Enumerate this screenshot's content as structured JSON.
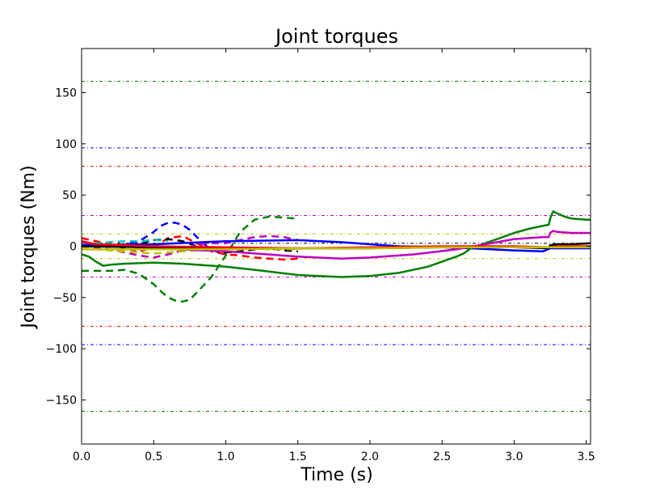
{
  "chart_data": {
    "type": "line",
    "title": "Joint torques",
    "xlabel": "Time (s)",
    "ylabel": "Joint torques (Nm)",
    "xlim": [
      0,
      3.53
    ],
    "ylim": [
      -193,
      193
    ],
    "xticks": [
      0.0,
      0.5,
      1.0,
      1.5,
      2.0,
      2.5,
      3.0,
      3.5
    ],
    "xtick_labels": [
      "0.0",
      "0.5",
      "1.0",
      "1.5",
      "2.0",
      "2.5",
      "3.0",
      "3.5"
    ],
    "yticks": [
      -150,
      -100,
      -50,
      0,
      50,
      100,
      150
    ],
    "ytick_labels": [
      "−150",
      "−100",
      "−50",
      "0",
      "50",
      "100",
      "150"
    ],
    "grid": false,
    "limits": [
      {
        "value": 161,
        "color": "#008000"
      },
      {
        "value": -161,
        "color": "#008000"
      },
      {
        "value": 96,
        "color": "#0000ff"
      },
      {
        "value": -96,
        "color": "#0000ff"
      },
      {
        "value": 78,
        "color": "#ff0000"
      },
      {
        "value": -78,
        "color": "#ff0000"
      },
      {
        "value": 30,
        "color": "#bf00bf"
      },
      {
        "value": -30,
        "color": "#bf00bf"
      },
      {
        "value": 12,
        "color": "#bfbf00"
      },
      {
        "value": -12,
        "color": "#bfbf00"
      },
      {
        "value": 3,
        "color": "#000000"
      }
    ],
    "series": [
      {
        "color": "#0000ff",
        "style": "dashed",
        "x": [
          0,
          0.1,
          0.2,
          0.3,
          0.4,
          0.5,
          0.55,
          0.6,
          0.65,
          0.7,
          0.75,
          0.8,
          0.85,
          0.9,
          0.95,
          1.0
        ],
        "y": [
          3,
          2,
          1,
          2,
          5,
          14,
          20,
          23,
          23,
          21,
          16,
          9,
          2,
          -3,
          -6,
          -7
        ]
      },
      {
        "color": "#ff0000",
        "style": "dashed",
        "x": [
          0,
          0.1,
          0.2,
          0.3,
          0.4,
          0.5,
          0.6,
          0.7,
          0.8,
          0.9,
          1.0,
          1.1,
          1.2,
          1.3,
          1.4,
          1.5
        ],
        "y": [
          8,
          5,
          2,
          -2,
          -5,
          -1,
          8,
          10,
          3,
          -5,
          -8,
          -9,
          -11,
          -12,
          -13,
          -12
        ]
      },
      {
        "color": "#008000",
        "style": "dashed",
        "x": [
          0,
          0.1,
          0.2,
          0.3,
          0.4,
          0.5,
          0.55,
          0.6,
          0.65,
          0.7,
          0.75,
          0.8,
          0.9,
          1.0,
          1.1,
          1.2,
          1.3,
          1.4,
          1.5
        ],
        "y": [
          -24,
          -24,
          -24,
          -23,
          -27,
          -37,
          -44,
          -50,
          -53,
          -54,
          -52,
          -45,
          -30,
          -9,
          14,
          26,
          29,
          28,
          27
        ]
      },
      {
        "color": "#000000",
        "style": "dashed",
        "x": [
          0,
          0.1,
          0.2,
          0.3,
          0.4,
          0.5,
          0.6,
          0.7,
          0.8,
          0.9,
          1.0,
          1.1,
          1.2,
          1.3,
          1.4,
          1.5
        ],
        "y": [
          2,
          1,
          0,
          -1,
          2,
          6,
          7,
          5,
          0,
          -4,
          -6,
          -5,
          -3,
          -2,
          -4,
          -5
        ]
      },
      {
        "color": "#bf00bf",
        "style": "dashed",
        "x": [
          0,
          0.1,
          0.2,
          0.3,
          0.4,
          0.5,
          0.6,
          0.7,
          0.8,
          0.9,
          1.0,
          1.1,
          1.2,
          1.3,
          1.4,
          1.5
        ],
        "y": [
          1,
          -1,
          -3,
          -6,
          -9,
          -11,
          -8,
          -4,
          2,
          3,
          3,
          6,
          9,
          10,
          9,
          6
        ]
      },
      {
        "color": "#bfbf00",
        "style": "dashed",
        "x": [
          0,
          0.1,
          0.2,
          0.3,
          0.4,
          0.5,
          0.6,
          0.7,
          0.8,
          0.9,
          1.0,
          1.1,
          1.2,
          1.3,
          1.4,
          1.5
        ],
        "y": [
          -2,
          -3,
          -4,
          -5,
          -6,
          -7,
          -6,
          -5,
          -4,
          -3,
          -2,
          -2,
          -2,
          -3,
          -3,
          -3
        ]
      },
      {
        "color": "#00bfbf",
        "style": "dashed",
        "x": [
          0,
          0.1,
          0.2,
          0.3,
          0.4,
          0.5,
          0.55,
          0.6
        ],
        "y": [
          2,
          3,
          4,
          5,
          5,
          6,
          6,
          5
        ]
      },
      {
        "color": "#0000ff",
        "style": "solid",
        "x": [
          0,
          0.5,
          1.0,
          1.5,
          1.8,
          2.0,
          2.2,
          2.5,
          2.7,
          3.0,
          3.2,
          3.25,
          3.3,
          3.4,
          3.53
        ],
        "y": [
          1,
          2,
          5,
          6,
          4,
          2,
          0,
          -1,
          -2,
          -4,
          -5,
          -2,
          -2,
          -2,
          -2
        ]
      },
      {
        "color": "#008000",
        "style": "solid",
        "x": [
          0,
          0.05,
          0.1,
          0.15,
          0.2,
          0.3,
          0.5,
          0.7,
          1.0,
          1.2,
          1.5,
          1.8,
          2.0,
          2.2,
          2.4,
          2.6,
          2.65,
          2.7,
          2.8,
          2.9,
          3.0,
          3.1,
          3.2,
          3.24,
          3.25,
          3.27,
          3.3,
          3.35,
          3.4,
          3.5,
          3.53
        ],
        "y": [
          -8,
          -10,
          -15,
          -19,
          -18,
          -17,
          -16,
          -17,
          -20,
          -23,
          -28,
          -30,
          -29,
          -26,
          -20,
          -10,
          -7,
          -2,
          3,
          8,
          13,
          17,
          20,
          21,
          27,
          34,
          32,
          29,
          27,
          26,
          26
        ]
      },
      {
        "color": "#bf00bf",
        "style": "solid",
        "x": [
          0,
          0.1,
          0.2,
          0.5,
          1.0,
          1.5,
          1.8,
          2.0,
          2.3,
          2.6,
          2.8,
          3.0,
          3.2,
          3.24,
          3.25,
          3.27,
          3.3,
          3.4,
          3.53
        ],
        "y": [
          4,
          2,
          1,
          -2,
          -5,
          -10,
          -12,
          -11,
          -8,
          -3,
          2,
          7,
          9,
          9,
          13,
          15,
          14,
          13,
          13
        ]
      },
      {
        "color": "#000000",
        "style": "solid",
        "x": [
          0,
          0.5,
          1.0,
          1.5,
          2.0,
          2.5,
          3.0,
          3.24,
          3.25,
          3.3,
          3.4,
          3.53
        ],
        "y": [
          0,
          -1,
          -2,
          -2,
          -2,
          -1,
          -1,
          -2,
          1,
          2,
          2,
          3
        ]
      },
      {
        "color": "#ff0000",
        "style": "solid",
        "x": [
          0,
          0.1,
          0.5,
          1.0,
          1.5,
          2.0,
          2.5,
          3.0,
          3.24,
          3.3,
          3.53
        ],
        "y": [
          5,
          2,
          0,
          -1,
          -2,
          -1,
          0,
          0,
          -1,
          0,
          0
        ]
      },
      {
        "color": "#bfbf00",
        "style": "solid",
        "x": [
          0,
          0.1,
          0.5,
          1.0,
          1.5,
          2.0,
          2.5,
          3.0,
          3.3,
          3.53
        ],
        "y": [
          -3,
          -3,
          -3,
          -3,
          -2,
          -2,
          -1,
          -1,
          -1,
          -1
        ]
      }
    ]
  }
}
